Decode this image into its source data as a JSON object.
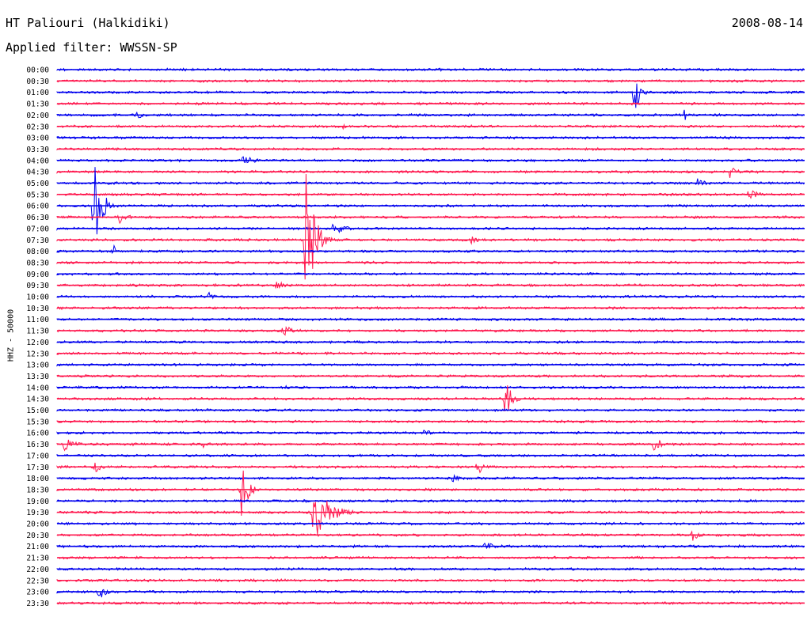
{
  "header": {
    "station": "HT Paliouri (Halkidiki)",
    "date": "2008-08-14",
    "filter_label": "Applied filter:",
    "filter_name": "WWSSN-SP"
  },
  "colors": {
    "even_hour": "#0000ee",
    "half_hour": "#ff1a50"
  },
  "chart_data": {
    "type": "line",
    "ylabel": "HHZ - 50000",
    "rows": [
      "00:00",
      "00:30",
      "01:00",
      "01:30",
      "02:00",
      "02:30",
      "03:00",
      "03:30",
      "04:00",
      "04:30",
      "05:00",
      "05:30",
      "06:00",
      "06:30",
      "07:00",
      "07:30",
      "08:00",
      "08:30",
      "09:00",
      "09:30",
      "10:00",
      "10:30",
      "11:00",
      "11:30",
      "12:00",
      "12:30",
      "13:00",
      "13:30",
      "14:00",
      "14:30",
      "15:00",
      "15:30",
      "16:00",
      "16:30",
      "17:00",
      "17:30",
      "18:00",
      "18:30",
      "19:00",
      "19:30",
      "20:00",
      "20:30",
      "21:00",
      "21:30",
      "22:00",
      "22:30",
      "23:00",
      "23:30"
    ],
    "x_range_minutes": [
      0,
      30
    ],
    "events": [
      {
        "row": "01:00",
        "minute": 23.2,
        "amp": 30,
        "dur": 0.8
      },
      {
        "row": "02:00",
        "minute": 3.2,
        "amp": 7,
        "dur": 1.2
      },
      {
        "row": "02:00",
        "minute": 25.2,
        "amp": 9,
        "dur": 0.2
      },
      {
        "row": "02:30",
        "minute": 11.5,
        "amp": 5,
        "dur": 0.3
      },
      {
        "row": "04:00",
        "minute": 7.5,
        "amp": 8,
        "dur": 1.6
      },
      {
        "row": "04:30",
        "minute": 27.0,
        "amp": 9,
        "dur": 1.3
      },
      {
        "row": "05:00",
        "minute": 25.7,
        "amp": 6,
        "dur": 2.0
      },
      {
        "row": "05:30",
        "minute": 27.8,
        "amp": 10,
        "dur": 1.2
      },
      {
        "row": "06:00",
        "minute": 1.5,
        "amp": 70,
        "dur": 1.0
      },
      {
        "row": "06:30",
        "minute": 2.5,
        "amp": 8,
        "dur": 1.5
      },
      {
        "row": "07:00",
        "minute": 11.1,
        "amp": 8,
        "dur": 2.0
      },
      {
        "row": "07:30",
        "minute": 10.0,
        "amp": 95,
        "dur": 1.2
      },
      {
        "row": "07:30",
        "minute": 16.6,
        "amp": 5,
        "dur": 1.6
      },
      {
        "row": "08:00",
        "minute": 2.3,
        "amp": 8,
        "dur": 0.2
      },
      {
        "row": "09:30",
        "minute": 8.8,
        "amp": 6,
        "dur": 1.5
      },
      {
        "row": "10:00",
        "minute": 6.1,
        "amp": 6,
        "dur": 0.9
      },
      {
        "row": "11:30",
        "minute": 9.1,
        "amp": 8,
        "dur": 1.2
      },
      {
        "row": "14:00",
        "minute": 9.2,
        "amp": 5,
        "dur": 1.0
      },
      {
        "row": "14:30",
        "minute": 18.0,
        "amp": 26,
        "dur": 0.9
      },
      {
        "row": "16:00",
        "minute": 14.7,
        "amp": 6,
        "dur": 1.0
      },
      {
        "row": "16:30",
        "minute": 0.3,
        "amp": 10,
        "dur": 1.6
      },
      {
        "row": "16:30",
        "minute": 5.9,
        "amp": 7,
        "dur": 0.8
      },
      {
        "row": "16:30",
        "minute": 24.0,
        "amp": 14,
        "dur": 0.7
      },
      {
        "row": "17:30",
        "minute": 1.5,
        "amp": 7,
        "dur": 2.2
      },
      {
        "row": "17:30",
        "minute": 16.9,
        "amp": 14,
        "dur": 0.5
      },
      {
        "row": "18:00",
        "minute": 15.9,
        "amp": 6,
        "dur": 1.0
      },
      {
        "row": "18:30",
        "minute": 7.4,
        "amp": 35,
        "dur": 1.0
      },
      {
        "row": "19:30",
        "minute": 10.3,
        "amp": 40,
        "dur": 2.2
      },
      {
        "row": "20:30",
        "minute": 25.5,
        "amp": 10,
        "dur": 0.8
      },
      {
        "row": "21:00",
        "minute": 17.2,
        "amp": 8,
        "dur": 1.2
      },
      {
        "row": "23:00",
        "minute": 1.7,
        "amp": 10,
        "dur": 1.0
      }
    ]
  }
}
